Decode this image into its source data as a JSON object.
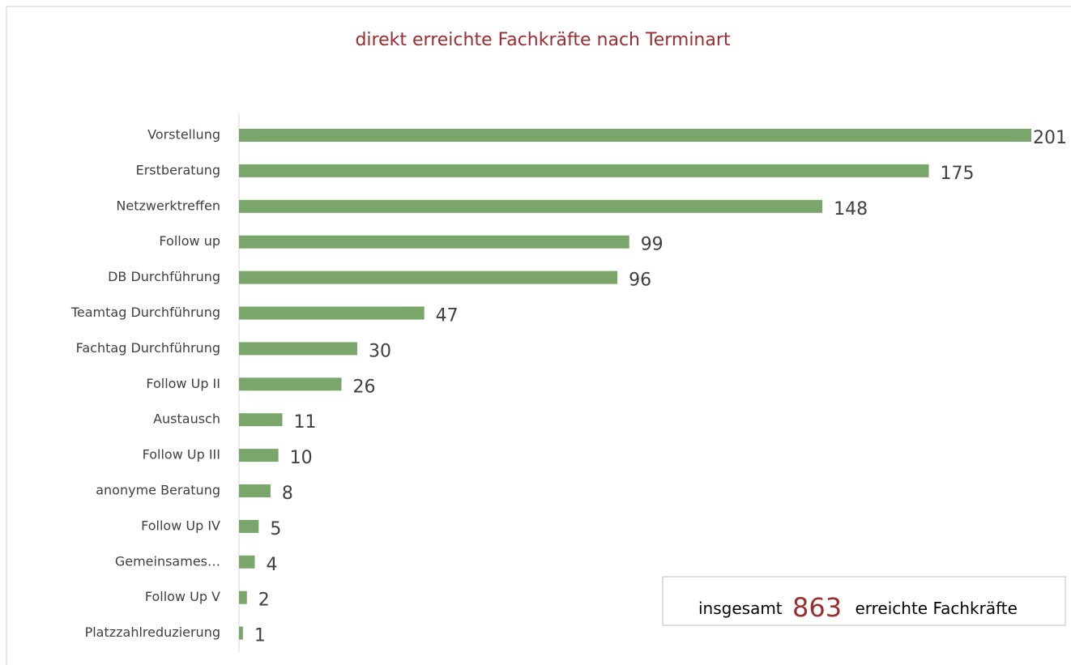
{
  "chart_data": {
    "type": "bar",
    "orientation": "horizontal",
    "title": "direkt erreichte Fachkräfte nach Terminart",
    "categories": [
      "Vorstellung",
      "Erstberatung",
      "Netzwerktreffen",
      "Follow up",
      "DB Durchführung",
      "Teamtag Durchführung",
      "Fachtag Durchführung",
      "Follow Up II",
      "Austausch",
      "Follow Up III",
      "anonyme Beratung",
      "Follow Up IV",
      "Gemeinsames…",
      "Follow Up V",
      "Platzzahlreduzierung"
    ],
    "values": [
      201,
      175,
      148,
      99,
      96,
      47,
      30,
      26,
      11,
      10,
      8,
      5,
      4,
      2,
      1
    ],
    "color": "#7aa56b",
    "annotation": {
      "prefix": "insgesamt",
      "value": 863,
      "suffix": "erreichte Fachkräfte"
    }
  }
}
